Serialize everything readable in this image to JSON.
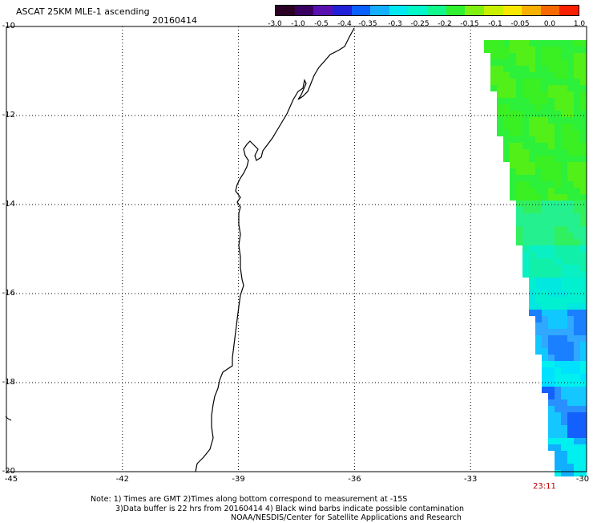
{
  "header": {
    "title": "ASCAT 25KM MLE-1 ascending",
    "date": "20160414"
  },
  "colorbar": {
    "colors": [
      "#2a0024",
      "#3a0060",
      "#5a10b0",
      "#2020d8",
      "#0a60ff",
      "#14b0ff",
      "#00e8f0",
      "#00f8c8",
      "#10f88c",
      "#30f030",
      "#80f010",
      "#c8f000",
      "#f8e800",
      "#f8b000",
      "#f86800",
      "#f82000"
    ],
    "ticks": [
      "-3.0",
      "-1.0",
      "-0.5",
      "-0.4",
      "-0.35",
      "-0.3",
      "-0.25",
      "-0.2",
      "-0.15",
      "-0.1",
      "-0.05",
      "0.0",
      "1.0"
    ]
  },
  "axes": {
    "y_ticks": [
      "-10",
      "-12",
      "-14",
      "-16",
      "-18",
      "-20"
    ],
    "x_ticks": [
      "-45",
      "-42",
      "-39",
      "-36",
      "-33",
      "-30"
    ],
    "lat_range": [
      -20,
      -10
    ],
    "lon_range": [
      -45,
      -30
    ],
    "grid": "dotted"
  },
  "time_label": "23:11",
  "notes": [
    "Note: 1) Times are GMT 2)Times along bottom correspond to measurement at -15S",
    "3)Data buffer is 22 hrs from 20160414 4) Black wind barbs indicate possible contamination",
    "NOAA/NESDIS/Center for Satellite Applications and Research"
  ]
}
